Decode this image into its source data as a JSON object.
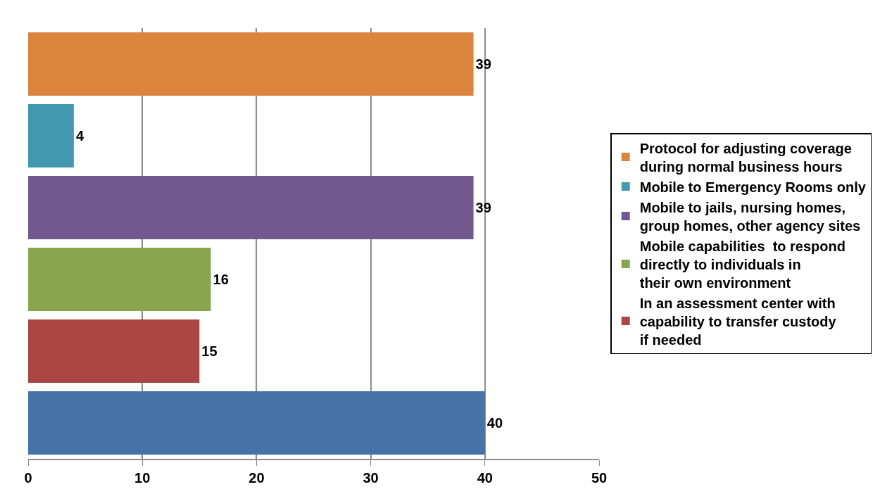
{
  "chart_data": {
    "type": "bar",
    "orientation": "horizontal",
    "categories": [
      null,
      null,
      null,
      null,
      null,
      null
    ],
    "series": [
      {
        "name": "Protocol for adjusting coverage during normal business hours",
        "color": "#db843d",
        "values": [
          39,
          null,
          null,
          null,
          null,
          null
        ]
      },
      {
        "name": "Mobile to Emergency Rooms only",
        "color": "#4198af",
        "values": [
          null,
          4,
          null,
          null,
          null,
          null
        ]
      },
      {
        "name": "Mobile to jails, nursing homes, group homes, other agency sites",
        "color": "#71588f",
        "values": [
          null,
          null,
          39,
          null,
          null,
          null
        ]
      },
      {
        "name": "Mobile capabilities  to respond directly to individuals in their own environment",
        "color": "#89a54e",
        "values": [
          null,
          null,
          null,
          16,
          null,
          null
        ]
      },
      {
        "name": "In an assessment center with capability to transfer custody if needed",
        "color": "#aa4643",
        "values": [
          null,
          null,
          null,
          null,
          15,
          null
        ]
      },
      {
        "color": "#4572a7",
        "values": [
          null,
          null,
          null,
          null,
          null,
          40
        ]
      }
    ],
    "xlim": [
      0,
      50
    ],
    "xticks": [
      0,
      10,
      20,
      30,
      40,
      50
    ],
    "grid": "x",
    "legend": "right",
    "data_labels": true,
    "tick_labels": "x"
  }
}
